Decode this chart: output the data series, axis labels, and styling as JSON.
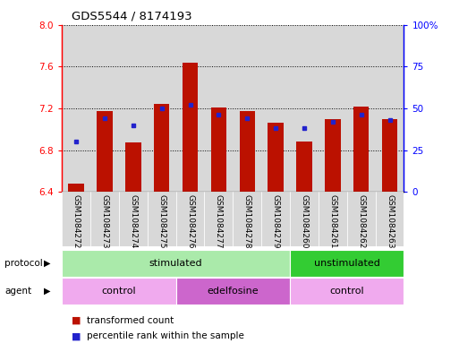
{
  "title": "GDS5544 / 8174193",
  "samples": [
    "GSM1084272",
    "GSM1084273",
    "GSM1084274",
    "GSM1084275",
    "GSM1084276",
    "GSM1084277",
    "GSM1084278",
    "GSM1084279",
    "GSM1084260",
    "GSM1084261",
    "GSM1084262",
    "GSM1084263"
  ],
  "transformed_counts": [
    6.48,
    7.17,
    6.87,
    7.24,
    7.64,
    7.21,
    7.17,
    7.06,
    6.88,
    7.1,
    7.22,
    7.1
  ],
  "percentile_ranks": [
    30,
    44,
    40,
    50,
    52,
    46,
    44,
    38,
    38,
    42,
    46,
    43
  ],
  "ylim_left": [
    6.4,
    8.0
  ],
  "ylim_right": [
    0,
    100
  ],
  "yticks_left": [
    6.4,
    6.8,
    7.2,
    7.6,
    8.0
  ],
  "yticks_right": [
    0,
    25,
    50,
    75,
    100
  ],
  "ytick_labels_right": [
    "0",
    "25",
    "50",
    "75",
    "100%"
  ],
  "bar_color": "#bb1100",
  "dot_color": "#2222cc",
  "protocol_groups": [
    {
      "label": "stimulated",
      "start": 0,
      "end": 8,
      "color": "#aaeaaa"
    },
    {
      "label": "unstimulated",
      "start": 8,
      "end": 12,
      "color": "#33cc33"
    }
  ],
  "agent_groups": [
    {
      "label": "control",
      "start": 0,
      "end": 4,
      "color": "#f0aaee"
    },
    {
      "label": "edelfosine",
      "start": 4,
      "end": 8,
      "color": "#cc66cc"
    },
    {
      "label": "control",
      "start": 8,
      "end": 12,
      "color": "#f0aaee"
    }
  ],
  "protocol_label": "protocol",
  "agent_label": "agent",
  "legend_bar_label": "transformed count",
  "legend_dot_label": "percentile rank within the sample",
  "ybase": 6.4,
  "col_bg_color": "#d8d8d8"
}
